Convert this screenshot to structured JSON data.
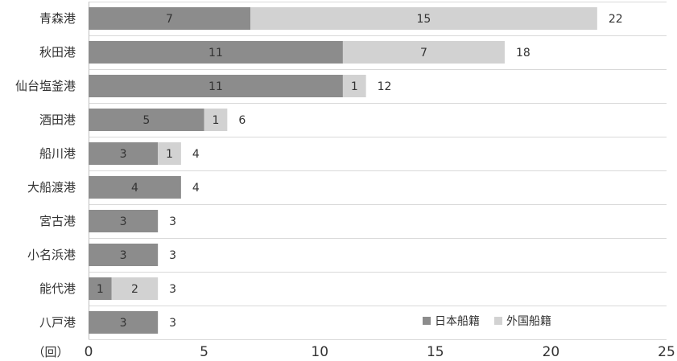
{
  "chart_data": {
    "type": "bar",
    "orientation": "horizontal",
    "stacked": true,
    "categories": [
      "青森港",
      "秋田港",
      "仙台塩釜港",
      "酒田港",
      "船川港",
      "大船渡港",
      "宮古港",
      "小名浜港",
      "能代港",
      "八戸港"
    ],
    "series": [
      {
        "name": "日本船籍",
        "values": [
          7,
          11,
          11,
          5,
          3,
          4,
          3,
          3,
          1,
          3
        ],
        "color": "#8c8c8c"
      },
      {
        "name": "外国船籍",
        "values": [
          15,
          7,
          1,
          1,
          1,
          0,
          0,
          0,
          2,
          0
        ],
        "color": "#d2d2d2"
      }
    ],
    "totals": [
      22,
      18,
      12,
      6,
      4,
      4,
      3,
      3,
      3,
      3
    ],
    "xlim": [
      0,
      25
    ],
    "xticks": [
      0,
      5,
      10,
      15,
      20,
      25
    ],
    "unit_label": "（回）",
    "grid": "horizontal-separators",
    "legend_position": "bottom-right"
  }
}
